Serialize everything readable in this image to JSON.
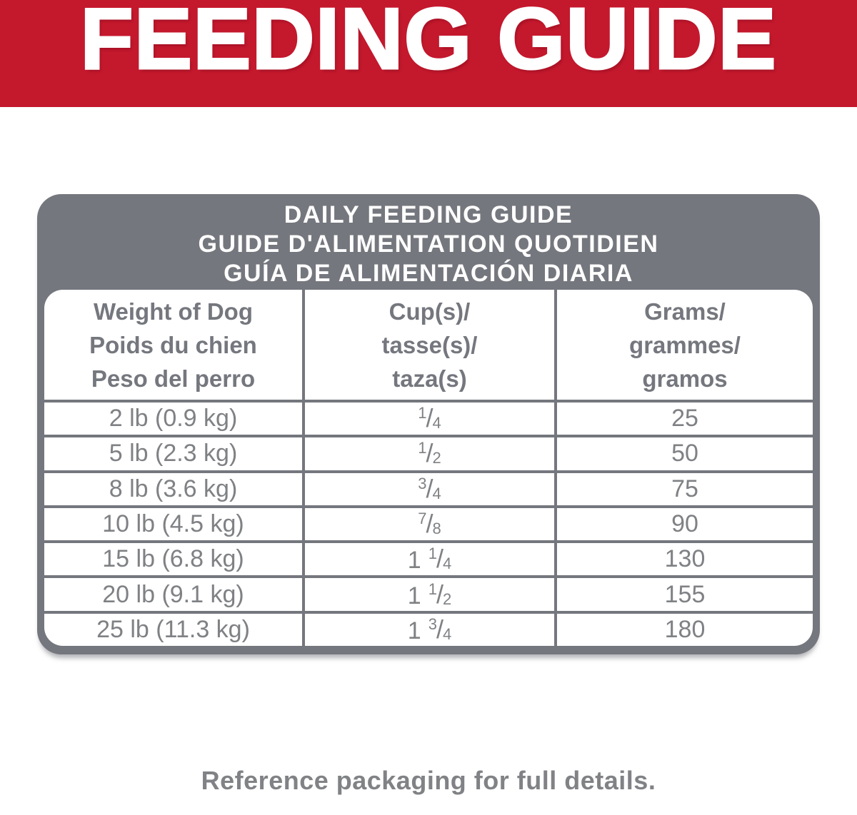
{
  "banner": {
    "title": "FEEDING GUIDE"
  },
  "card": {
    "title_lines": [
      "DAILY FEEDING GUIDE",
      "GUIDE D'ALIMENTATION QUOTIDIEN",
      "GUÍA DE ALIMENTACIÓN DIARIA"
    ],
    "columns": [
      {
        "id": "weight",
        "lines": [
          "Weight of Dog",
          "Poids du chien",
          "Peso del perro"
        ]
      },
      {
        "id": "cups",
        "lines": [
          "Cup(s)/",
          "tasse(s)/",
          "taza(s)"
        ]
      },
      {
        "id": "grams",
        "lines": [
          "Grams/",
          "grammes/",
          "gramos"
        ]
      }
    ],
    "fraction_slash": "/",
    "rows": [
      {
        "weight": "2 lb (0.9 kg)",
        "cups": {
          "whole": "",
          "num": "1",
          "den": "4"
        },
        "grams": "25"
      },
      {
        "weight": "5 lb (2.3 kg)",
        "cups": {
          "whole": "",
          "num": "1",
          "den": "2"
        },
        "grams": "50"
      },
      {
        "weight": "8 lb (3.6 kg)",
        "cups": {
          "whole": "",
          "num": "3",
          "den": "4"
        },
        "grams": "75"
      },
      {
        "weight": "10 lb (4.5 kg)",
        "cups": {
          "whole": "",
          "num": "7",
          "den": "8"
        },
        "grams": "90"
      },
      {
        "weight": "15 lb (6.8 kg)",
        "cups": {
          "whole": "1",
          "num": "1",
          "den": "4"
        },
        "grams": "130"
      },
      {
        "weight": "20 lb (9.1 kg)",
        "cups": {
          "whole": "1",
          "num": "1",
          "den": "2"
        },
        "grams": "155"
      },
      {
        "weight": "25 lb (11.3 kg)",
        "cups": {
          "whole": "1",
          "num": "3",
          "den": "4"
        },
        "grams": "180"
      }
    ]
  },
  "footer": {
    "note": "Reference packaging for full details."
  },
  "colors": {
    "brand_red": "#C4182D",
    "slate_gray": "#75777E",
    "table_text_gray": "#7F8184",
    "white": "#FFFFFF"
  }
}
